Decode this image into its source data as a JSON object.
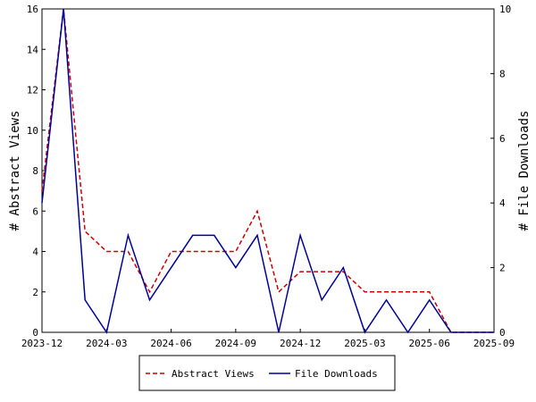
{
  "chart_data": {
    "type": "line",
    "xlabel": "",
    "ylabel": "# Abstract Views",
    "y2label": "# File Downloads",
    "x_ticks": [
      "2023-12",
      "2024-03",
      "2024-06",
      "2024-09",
      "2024-12",
      "2025-03",
      "2025-06",
      "2025-09"
    ],
    "y_ticks": [
      0,
      2,
      4,
      6,
      8,
      10,
      12,
      14,
      16
    ],
    "y2_ticks": [
      0,
      2,
      4,
      6,
      8,
      10
    ],
    "ylim": [
      0,
      16
    ],
    "y2lim": [
      0,
      10
    ],
    "x": [
      "2023-12",
      "2024-01",
      "2024-02",
      "2024-03",
      "2024-04",
      "2024-05",
      "2024-06",
      "2024-07",
      "2024-08",
      "2024-09",
      "2024-10",
      "2024-11",
      "2024-12",
      "2025-01",
      "2025-02",
      "2025-03",
      "2025-04",
      "2025-05",
      "2025-06",
      "2025-07",
      "2025-08",
      "2025-09"
    ],
    "series": [
      {
        "name": "Abstract Views",
        "axis": "left",
        "color": "#cc0000",
        "dash": "dashed",
        "values": [
          7,
          16,
          5,
          4,
          4,
          2,
          4,
          4,
          4,
          4,
          6,
          2,
          3,
          3,
          3,
          2,
          2,
          2,
          2,
          0,
          0,
          0
        ]
      },
      {
        "name": "File Downloads",
        "axis": "right",
        "color": "#000099",
        "dash": "solid",
        "values": [
          4,
          10,
          1,
          0,
          3,
          1,
          2,
          3,
          3,
          2,
          3,
          0,
          3,
          1,
          2,
          0,
          1,
          0,
          1,
          0,
          0,
          0
        ]
      }
    ],
    "legend_position": "bottom-center",
    "grid": false
  }
}
